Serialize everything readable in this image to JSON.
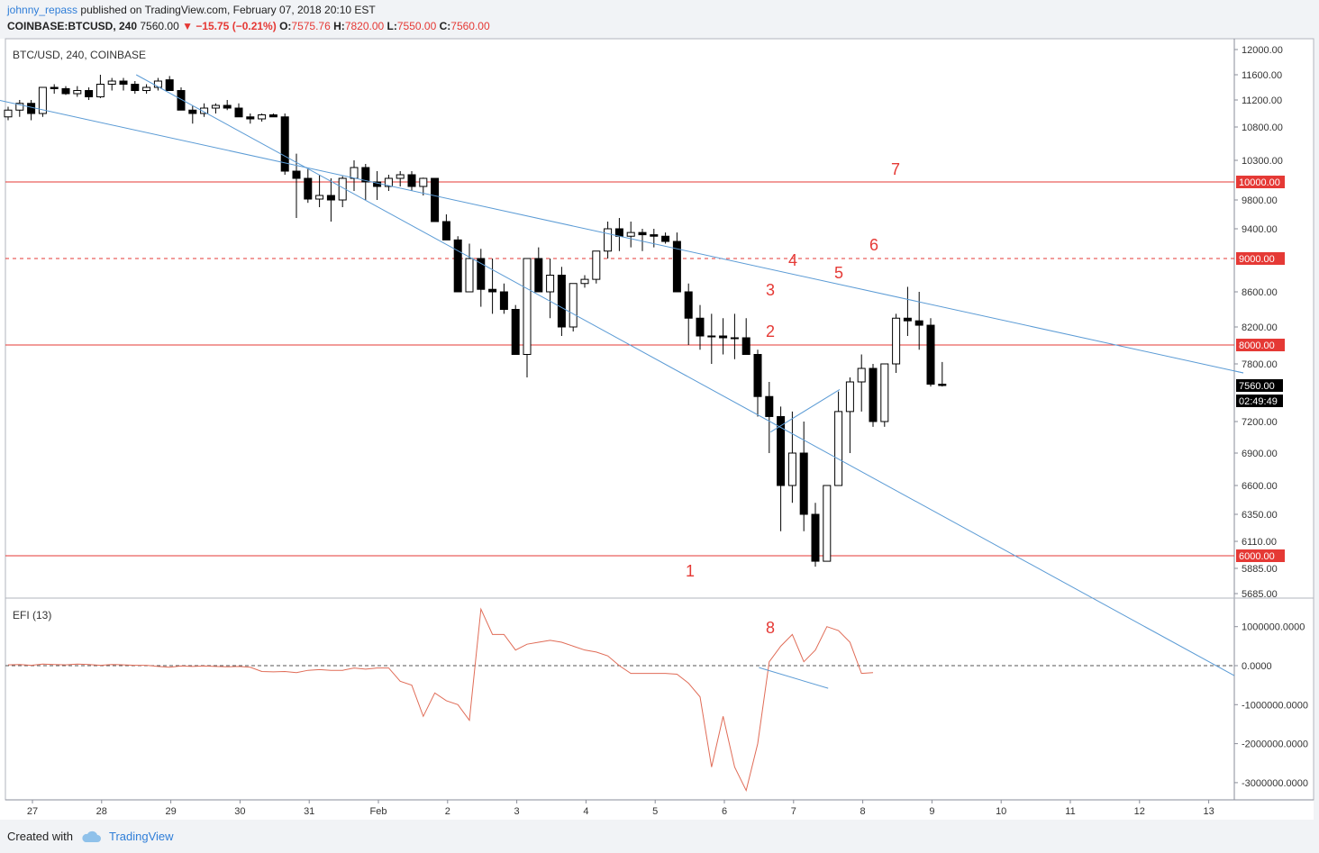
{
  "header": {
    "author": "johnny_repass",
    "published": "published on TradingView.com, February 07, 2018 20:10 EST",
    "symbol": "COINBASE:BTCUSD, 240",
    "last": "7560.00",
    "change": "▼ −15.75 (−0.21%)",
    "o_label": "O:",
    "o_val": "7575.76",
    "h_label": "H:",
    "h_val": "7820.00",
    "l_label": "L:",
    "l_val": "7550.00",
    "c_label": "C:",
    "c_val": "7560.00"
  },
  "footer": {
    "created": "Created with",
    "brand": "TradingView"
  },
  "colors": {
    "up": "#ffffff",
    "down": "#000000",
    "trend": "#5b9bd5",
    "level": "#e53935",
    "efi": "#e06c57",
    "label": "#e53935"
  },
  "chart_data": [
    {
      "type": "candlestick",
      "title": "BTC/USD, 240, COINBASE",
      "y_ticks": [
        12000,
        11600,
        11200,
        10800,
        10300,
        9800,
        9400,
        8600,
        8200,
        7800,
        7200,
        6900,
        6600,
        6350,
        6110,
        5885,
        5685
      ],
      "y_tick_labels": [
        "12000.00",
        "11600.00",
        "11200.00",
        "10800.00",
        "10300.00",
        "9800.00",
        "9400.00",
        "8600.00",
        "8200.00",
        "7800.00",
        "7200.00",
        "6900.00",
        "6600.00",
        "6350.00",
        "6110.00",
        "5885.00",
        "5685.00"
      ],
      "x_tick_labels": [
        "27",
        "28",
        "29",
        "30",
        "31",
        "Feb",
        "2",
        "3",
        "4",
        "5",
        "6",
        "7",
        "8",
        "9",
        "10",
        "11",
        "12",
        "13"
      ],
      "horizontal_levels": [
        {
          "value": 10000,
          "label": "10000.00",
          "style": "solid"
        },
        {
          "value": 9000,
          "label": "9000.00",
          "style": "dashed"
        },
        {
          "value": 8000,
          "label": "8000.00",
          "style": "solid"
        },
        {
          "value": 6000,
          "label": "6000.00",
          "style": "solid"
        }
      ],
      "last_price_label": "7560.00",
      "countdown_label": "02:49:49",
      "annotations": [
        "1",
        "2",
        "3",
        "4",
        "5",
        "6",
        "7"
      ],
      "candles": [
        [
          10950,
          11100,
          10900,
          11050
        ],
        [
          11050,
          11200,
          10950,
          11150
        ],
        [
          11150,
          11200,
          10900,
          11000
        ],
        [
          11000,
          11400,
          10950,
          11400
        ],
        [
          11400,
          11450,
          11300,
          11380
        ],
        [
          11380,
          11420,
          11280,
          11300
        ],
        [
          11300,
          11420,
          11250,
          11350
        ],
        [
          11350,
          11400,
          11200,
          11250
        ],
        [
          11250,
          11600,
          11230,
          11450
        ],
        [
          11450,
          11550,
          11350,
          11500
        ],
        [
          11500,
          11550,
          11350,
          11450
        ],
        [
          11450,
          11500,
          11300,
          11350
        ],
        [
          11350,
          11450,
          11300,
          11400
        ],
        [
          11400,
          11550,
          11350,
          11500
        ],
        [
          11520,
          11580,
          11350,
          11350
        ],
        [
          11350,
          11400,
          11050,
          11050
        ],
        [
          11050,
          11120,
          10850,
          11000
        ],
        [
          11000,
          11150,
          10950,
          11080
        ],
        [
          11080,
          11150,
          11000,
          11120
        ],
        [
          11120,
          11200,
          11050,
          11080
        ],
        [
          11080,
          11150,
          10950,
          10950
        ],
        [
          10950,
          11000,
          10850,
          10920
        ],
        [
          10920,
          11000,
          10880,
          10980
        ],
        [
          10980,
          11000,
          10950,
          10950
        ],
        [
          10950,
          11000,
          10100,
          10150
        ],
        [
          10150,
          10400,
          9550,
          10050
        ],
        [
          10050,
          10180,
          9760,
          9810
        ],
        [
          9810,
          10100,
          9700,
          9850
        ],
        [
          9850,
          10050,
          9500,
          9800
        ],
        [
          9800,
          10080,
          9700,
          10050
        ],
        [
          10050,
          10300,
          9900,
          10200
        ],
        [
          10200,
          10250,
          9800,
          10000
        ],
        [
          10000,
          10150,
          9800,
          9950
        ],
        [
          9950,
          10100,
          9900,
          10050
        ],
        [
          10050,
          10150,
          9950,
          10100
        ],
        [
          10100,
          10150,
          9900,
          9950
        ],
        [
          9950,
          10060,
          9850,
          10050
        ],
        [
          10050,
          10050,
          9500,
          9500
        ],
        [
          9500,
          9600,
          9250,
          9250
        ],
        [
          9250,
          9300,
          8600,
          8600
        ],
        [
          8600,
          9200,
          8600,
          9000
        ],
        [
          9000,
          9130,
          8430,
          8630
        ],
        [
          8630,
          9000,
          8350,
          8600
        ],
        [
          8600,
          8700,
          8350,
          8400
        ],
        [
          8400,
          8450,
          7900,
          7900
        ],
        [
          7900,
          9000,
          7650,
          9000
        ],
        [
          9000,
          9150,
          8650,
          8600
        ],
        [
          8600,
          9000,
          8300,
          8800
        ],
        [
          8800,
          8900,
          8100,
          8200
        ],
        [
          8200,
          8700,
          8150,
          8700
        ],
        [
          8700,
          8800,
          8650,
          8750
        ],
        [
          8750,
          9100,
          8700,
          9100
        ],
        [
          9100,
          9500,
          9000,
          9400
        ],
        [
          9400,
          9550,
          9100,
          9300
        ],
        [
          9300,
          9500,
          9150,
          9350
        ],
        [
          9350,
          9400,
          9100,
          9320
        ],
        [
          9320,
          9400,
          9150,
          9300
        ],
        [
          9300,
          9350,
          9200,
          9230
        ],
        [
          9230,
          9350,
          8600,
          8600
        ],
        [
          8600,
          8700,
          8000,
          8300
        ],
        [
          8300,
          8450,
          7950,
          8100
        ],
        [
          8100,
          8350,
          7800,
          8100
        ],
        [
          8100,
          8300,
          7900,
          8080
        ],
        [
          8080,
          8350,
          7850,
          8080
        ],
        [
          8080,
          8300,
          7900,
          7900
        ],
        [
          7900,
          7950,
          7250,
          7450
        ],
        [
          7450,
          7600,
          6900,
          7250
        ],
        [
          7250,
          7350,
          6200,
          6600
        ],
        [
          6600,
          7300,
          6450,
          6900
        ],
        [
          6900,
          7200,
          6200,
          6350
        ],
        [
          6350,
          6450,
          5900,
          5950
        ],
        [
          5950,
          6550,
          5950,
          6600
        ],
        [
          6600,
          7500,
          6600,
          7300
        ],
        [
          7300,
          7650,
          6900,
          7600
        ],
        [
          7600,
          7900,
          7300,
          7750
        ],
        [
          7750,
          7800,
          7150,
          7200
        ],
        [
          7200,
          7800,
          7150,
          7800
        ],
        [
          7800,
          8350,
          7700,
          8300
        ],
        [
          8300,
          8660,
          8100,
          8270
        ],
        [
          8270,
          8600,
          7950,
          8220
        ],
        [
          8220,
          8300,
          7550,
          7575
        ],
        [
          7575,
          7820,
          7550,
          7560
        ]
      ],
      "trendlines": [
        {
          "from": [
            "Jan 28 12:00",
            11600
          ],
          "to": [
            "Feb 8 12:00",
            6550
          ]
        },
        {
          "from": [
            "Jan 26 12:00",
            11200
          ],
          "to": [
            "Feb 13 12:00",
            7700
          ]
        },
        {
          "from": [
            "Feb 6 16:00",
            7100
          ],
          "to": [
            "Feb 7 16:00",
            7520
          ]
        }
      ]
    },
    {
      "type": "line",
      "title": "EFI (13)",
      "y_ticks": [
        1000000,
        0,
        -1000000,
        -2000000,
        -3000000
      ],
      "y_tick_labels": [
        "1000000.0000",
        "0.0000",
        "-1000000.0000",
        "-2000000.0000",
        "-3000000.0000"
      ],
      "annotations": [
        "8"
      ],
      "values": [
        20000,
        30000,
        10000,
        40000,
        30000,
        20000,
        40000,
        30000,
        10000,
        30000,
        20000,
        10000,
        10000,
        -20000,
        -40000,
        -10000,
        -20000,
        -10000,
        -20000,
        -30000,
        -20000,
        -40000,
        -150000,
        -160000,
        -150000,
        -180000,
        -120000,
        -100000,
        -120000,
        -120000,
        -60000,
        -90000,
        -60000,
        -60000,
        -400000,
        -500000,
        -1300000,
        -700000,
        -900000,
        -1000000,
        -1400000,
        1450000,
        800000,
        800000,
        400000,
        550000,
        600000,
        650000,
        600000,
        500000,
        400000,
        350000,
        250000,
        0,
        -200000,
        -200000,
        -200000,
        -200000,
        -220000,
        -450000,
        -800000,
        -2600000,
        -1300000,
        -2600000,
        -3200000,
        -2000000,
        100000,
        500000,
        800000,
        100000,
        400000,
        1000000,
        900000,
        600000,
        -200000,
        -180000
      ],
      "trendline": {
        "from": [
          "Feb 6 12:00",
          -50000
        ],
        "to": [
          "Feb 7 12:00",
          -580000
        ]
      }
    }
  ]
}
